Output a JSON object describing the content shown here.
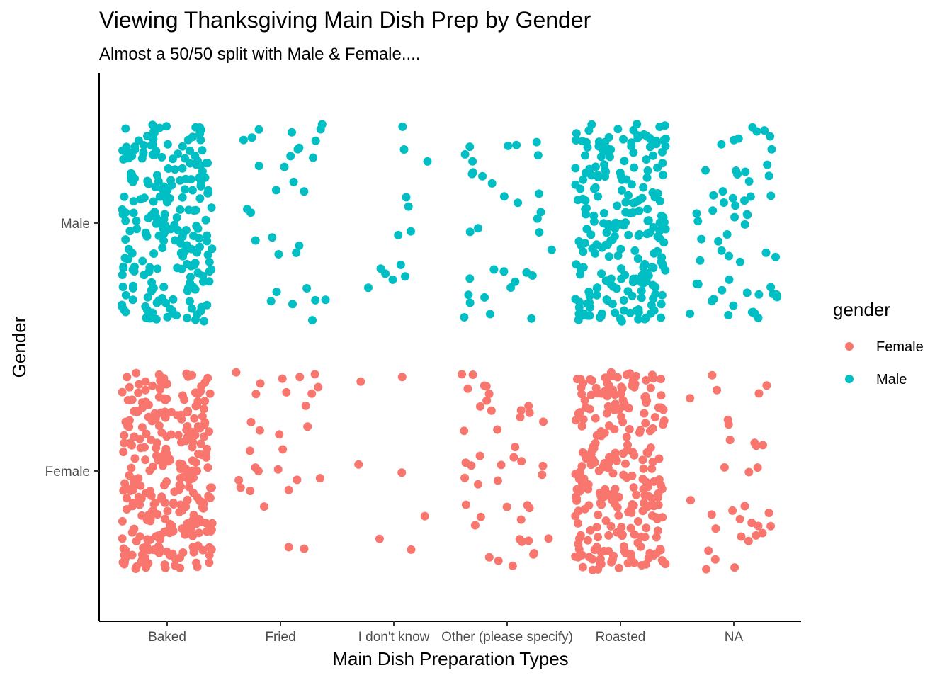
{
  "chart_data": {
    "type": "scatter",
    "title": "Viewing Thanksgiving Main Dish Prep by Gender",
    "subtitle": "Almost a 50/50 split with Male & Female....",
    "xlabel": "Main Dish Preparation Types",
    "ylabel": "Gender",
    "categories": [
      "Baked",
      "Fried",
      "I don't know",
      "Other (please specify)",
      "Roasted",
      "NA"
    ],
    "y_categories": [
      "Female",
      "Male"
    ],
    "jitter": {
      "width": 0.4,
      "height": 0.4
    },
    "grid": false,
    "legend": {
      "title": "gender",
      "placement": "right",
      "entries": [
        "Female",
        "Male"
      ]
    },
    "series": [
      {
        "name": "Female",
        "color": "#F8766D",
        "counts": {
          "Baked": 295,
          "Fried": 28,
          "I don't know": 7,
          "Other (please specify)": 44,
          "Roasted": 260,
          "NA": 32
        }
      },
      {
        "name": "Male",
        "color": "#00BFC4",
        "counts": {
          "Baked": 235,
          "Fried": 30,
          "I don't know": 13,
          "Other (please specify)": 33,
          "Roasted": 233,
          "NA": 58
        }
      }
    ]
  }
}
